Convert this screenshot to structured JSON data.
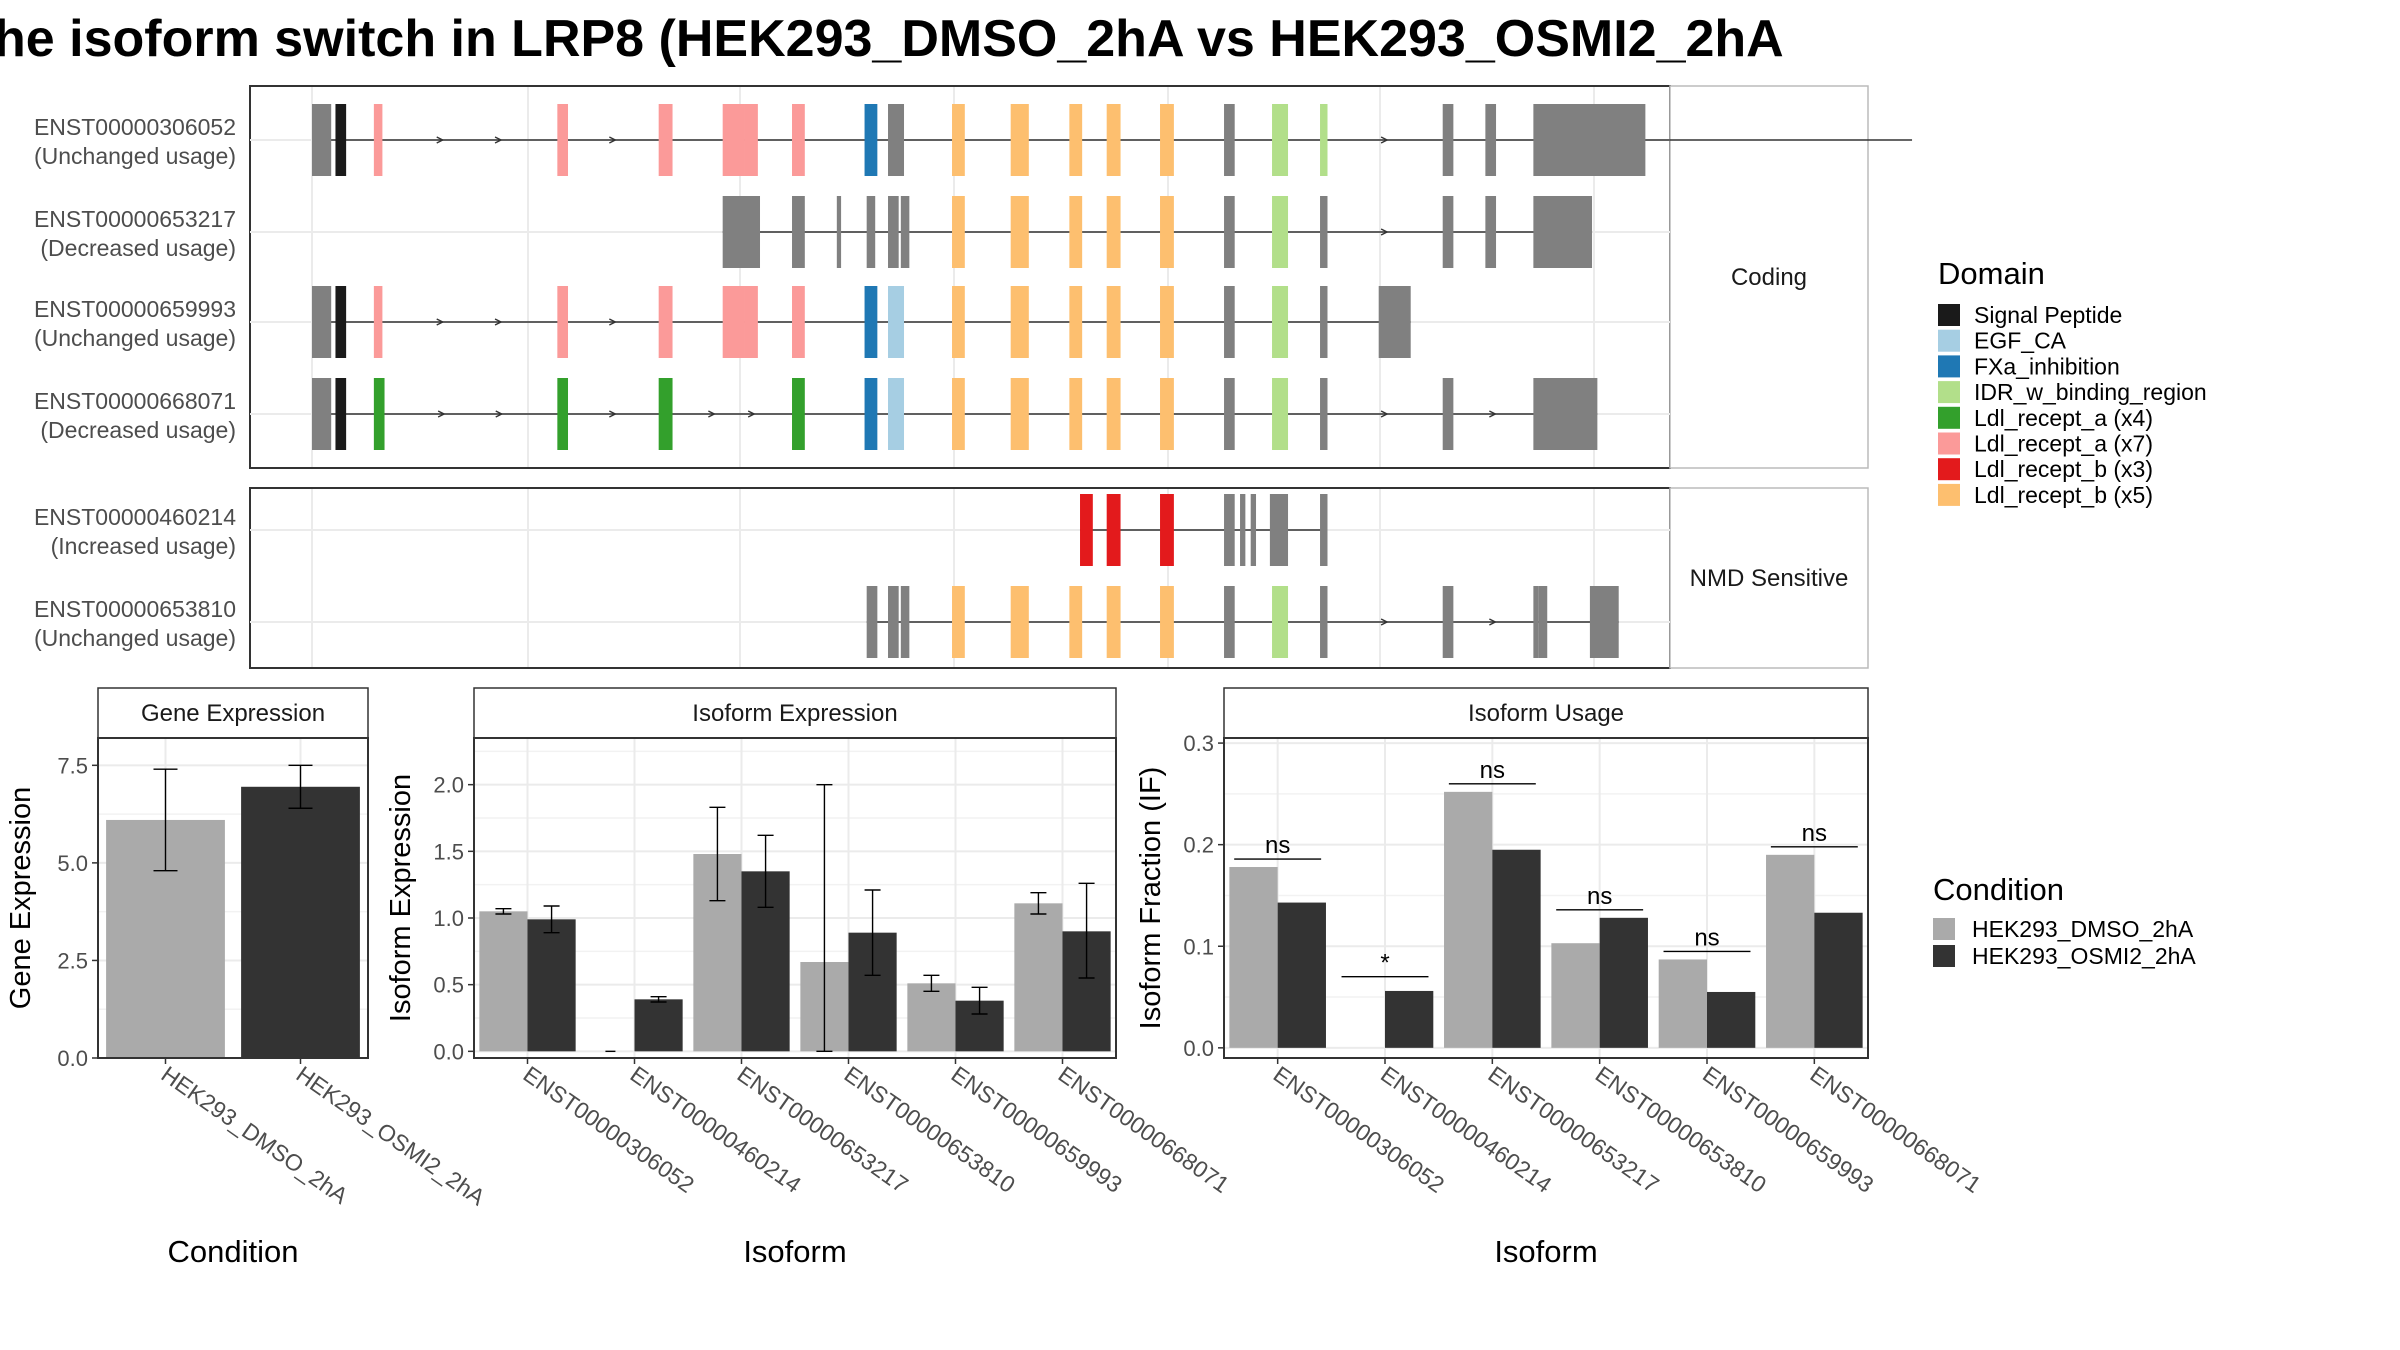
{
  "title": "he isoform switch in LRP8 (HEK293_DMSO_2hA vs HEK293_OSMI2_2hA",
  "colors": {
    "Signal Peptide": "#1a1a1a",
    "EGF_CA": "#a6cee3",
    "FXa_inhibition": "#1f78b4",
    "IDR_w_binding_region": "#b2df8a",
    "Ldl_recept_a (x4)": "#33a02c",
    "Ldl_recept_a (x7)": "#fb9a99",
    "Ldl_recept_b (x3)": "#e31a1c",
    "Ldl_recept_b (x5)": "#fdbf6f",
    "noncoding": "#808080",
    "DMSO": "#aaaaaa",
    "OSMI2": "#333333"
  },
  "legends": {
    "domain_title": "Domain",
    "domain_items": [
      "Signal Peptide",
      "EGF_CA",
      "FXa_inhibition",
      "IDR_w_binding_region",
      "Ldl_recept_a (x4)",
      "Ldl_recept_a (x7)",
      "Ldl_recept_b (x3)",
      "Ldl_recept_b (x5)"
    ],
    "condition_title": "Condition",
    "condition_items": [
      "HEK293_DMSO_2hA",
      "HEK293_OSMI2_2hA"
    ]
  },
  "structure": {
    "facet_coding": "Coding",
    "facet_nmd": "NMD Sensitive",
    "transcripts": [
      {
        "id": "ENST00000306052",
        "status": "(Unchanged usage)",
        "group": "coding",
        "start": 0,
        "end": 1500,
        "exons": [
          [
            0,
            18,
            "n"
          ],
          [
            22,
            32,
            "Signal Peptide"
          ],
          [
            58,
            66,
            "Ldl_recept_a (x7)"
          ],
          [
            230,
            240,
            "Ldl_recept_a (x7)"
          ],
          [
            325,
            338,
            "Ldl_recept_a (x7)"
          ],
          [
            385,
            405,
            "Ldl_recept_a (x7)"
          ],
          [
            405,
            418,
            "Ldl_recept_a (x7)"
          ],
          [
            450,
            462,
            "Ldl_recept_a (x7)"
          ],
          [
            518,
            530,
            "FXa_inhibition"
          ],
          [
            540,
            555,
            "n"
          ],
          [
            600,
            612,
            "Ldl_recept_b (x5)"
          ],
          [
            655,
            672,
            "Ldl_recept_b (x5)"
          ],
          [
            710,
            722,
            "Ldl_recept_b (x5)"
          ],
          [
            745,
            758,
            "Ldl_recept_b (x5)"
          ],
          [
            795,
            808,
            "Ldl_recept_b (x5)"
          ],
          [
            855,
            865,
            "n"
          ],
          [
            900,
            915,
            "IDR_w_binding_region"
          ],
          [
            945,
            952,
            "IDR_w_binding_region"
          ],
          [
            1060,
            1070,
            "n"
          ],
          [
            1100,
            1110,
            "n"
          ],
          [
            1145,
            1250,
            "n"
          ]
        ]
      },
      {
        "id": "ENST00000653217",
        "status": "(Decreased usage)",
        "group": "coding",
        "start": 385,
        "end": 1200,
        "exons": [
          [
            385,
            420,
            "n"
          ],
          [
            450,
            462,
            "n"
          ],
          [
            492,
            496,
            "n"
          ],
          [
            520,
            528,
            "n"
          ],
          [
            540,
            550,
            "n"
          ],
          [
            552,
            560,
            "n"
          ],
          [
            600,
            612,
            "Ldl_recept_b (x5)"
          ],
          [
            655,
            672,
            "Ldl_recept_b (x5)"
          ],
          [
            710,
            722,
            "Ldl_recept_b (x5)"
          ],
          [
            745,
            758,
            "Ldl_recept_b (x5)"
          ],
          [
            795,
            808,
            "Ldl_recept_b (x5)"
          ],
          [
            855,
            865,
            "n"
          ],
          [
            900,
            915,
            "IDR_w_binding_region"
          ],
          [
            945,
            952,
            "n"
          ],
          [
            1060,
            1070,
            "n"
          ],
          [
            1100,
            1110,
            "n"
          ],
          [
            1145,
            1200,
            "n"
          ]
        ]
      },
      {
        "id": "ENST00000659993",
        "status": "(Unchanged usage)",
        "group": "coding",
        "start": 0,
        "end": 1030,
        "exons": [
          [
            0,
            18,
            "n"
          ],
          [
            22,
            32,
            "Signal Peptide"
          ],
          [
            58,
            66,
            "Ldl_recept_a (x7)"
          ],
          [
            230,
            240,
            "Ldl_recept_a (x7)"
          ],
          [
            325,
            338,
            "Ldl_recept_a (x7)"
          ],
          [
            385,
            405,
            "Ldl_recept_a (x7)"
          ],
          [
            405,
            418,
            "Ldl_recept_a (x7)"
          ],
          [
            450,
            462,
            "Ldl_recept_a (x7)"
          ],
          [
            518,
            530,
            "FXa_inhibition"
          ],
          [
            540,
            555,
            "EGF_CA"
          ],
          [
            600,
            612,
            "Ldl_recept_b (x5)"
          ],
          [
            655,
            672,
            "Ldl_recept_b (x5)"
          ],
          [
            710,
            722,
            "Ldl_recept_b (x5)"
          ],
          [
            745,
            758,
            "Ldl_recept_b (x5)"
          ],
          [
            795,
            808,
            "Ldl_recept_b (x5)"
          ],
          [
            855,
            865,
            "n"
          ],
          [
            900,
            915,
            "IDR_w_binding_region"
          ],
          [
            945,
            952,
            "n"
          ],
          [
            1000,
            1012,
            "n"
          ],
          [
            1012,
            1030,
            "n"
          ]
        ]
      },
      {
        "id": "ENST00000668071",
        "status": "(Decreased usage)",
        "group": "coding",
        "start": 0,
        "end": 1205,
        "exons": [
          [
            0,
            18,
            "n"
          ],
          [
            22,
            32,
            "Signal Peptide"
          ],
          [
            58,
            68,
            "Ldl_recept_a (x4)"
          ],
          [
            230,
            240,
            "Ldl_recept_a (x4)"
          ],
          [
            325,
            338,
            "Ldl_recept_a (x4)"
          ],
          [
            450,
            462,
            "Ldl_recept_a (x4)"
          ],
          [
            518,
            530,
            "FXa_inhibition"
          ],
          [
            540,
            555,
            "EGF_CA"
          ],
          [
            600,
            612,
            "Ldl_recept_b (x5)"
          ],
          [
            655,
            672,
            "Ldl_recept_b (x5)"
          ],
          [
            710,
            722,
            "Ldl_recept_b (x5)"
          ],
          [
            745,
            758,
            "Ldl_recept_b (x5)"
          ],
          [
            795,
            808,
            "Ldl_recept_b (x5)"
          ],
          [
            855,
            865,
            "n"
          ],
          [
            900,
            915,
            "IDR_w_binding_region"
          ],
          [
            945,
            952,
            "n"
          ],
          [
            1060,
            1070,
            "n"
          ],
          [
            1145,
            1205,
            "n"
          ]
        ]
      },
      {
        "id": "ENST00000460214",
        "status": "(Increased usage)",
        "group": "nmd",
        "start": 720,
        "end": 952,
        "exons": [
          [
            720,
            732,
            "Ldl_recept_b (x3)"
          ],
          [
            745,
            758,
            "Ldl_recept_b (x3)"
          ],
          [
            795,
            808,
            "Ldl_recept_b (x3)"
          ],
          [
            855,
            865,
            "n"
          ],
          [
            870,
            875,
            "n"
          ],
          [
            880,
            885,
            "n"
          ],
          [
            898,
            915,
            "n"
          ],
          [
            945,
            952,
            "n"
          ]
        ]
      },
      {
        "id": "ENST00000653810",
        "status": "(Unchanged usage)",
        "group": "nmd",
        "start": 520,
        "end": 1225,
        "exons": [
          [
            520,
            530,
            "n"
          ],
          [
            540,
            550,
            "n"
          ],
          [
            552,
            560,
            "n"
          ],
          [
            600,
            612,
            "Ldl_recept_b (x5)"
          ],
          [
            655,
            672,
            "Ldl_recept_b (x5)"
          ],
          [
            710,
            722,
            "Ldl_recept_b (x5)"
          ],
          [
            745,
            758,
            "Ldl_recept_b (x5)"
          ],
          [
            795,
            808,
            "Ldl_recept_b (x5)"
          ],
          [
            855,
            865,
            "n"
          ],
          [
            900,
            915,
            "IDR_w_binding_region"
          ],
          [
            945,
            952,
            "n"
          ],
          [
            1060,
            1070,
            "n"
          ],
          [
            1145,
            1150,
            "n"
          ],
          [
            1150,
            1158,
            "n"
          ],
          [
            1198,
            1225,
            "n"
          ]
        ]
      }
    ]
  },
  "chart_data": [
    {
      "type": "bar",
      "title": "Gene Expression",
      "xlabel": "Condition",
      "ylabel": "Gene Expression",
      "categories": [
        "HEK293_DMSO_2hA",
        "HEK293_OSMI2_2hA"
      ],
      "values": [
        6.1,
        6.95
      ],
      "err_low": [
        4.8,
        6.4
      ],
      "err_high": [
        7.4,
        7.5
      ],
      "ylim": [
        0,
        8.2
      ],
      "yticks": [
        "0.0",
        "2.5",
        "5.0",
        "7.5"
      ]
    },
    {
      "type": "bar",
      "title": "Isoform Expression",
      "xlabel": "Isoform",
      "ylabel": "Isoform Expression",
      "categories": [
        "ENST00000306052",
        "ENST00000460214",
        "ENST00000653217",
        "ENST00000653810",
        "ENST00000659993",
        "ENST00000668071"
      ],
      "series": [
        {
          "name": "HEK293_DMSO_2hA",
          "values": [
            1.05,
            0.0,
            1.48,
            0.67,
            0.51,
            1.11
          ],
          "err_low": [
            1.03,
            0.0,
            1.13,
            0.0,
            0.45,
            1.03
          ],
          "err_high": [
            1.07,
            0.0,
            1.83,
            2.0,
            0.57,
            1.19
          ]
        },
        {
          "name": "HEK293_OSMI2_2hA",
          "values": [
            0.99,
            0.39,
            1.35,
            0.89,
            0.38,
            0.9
          ],
          "err_low": [
            0.89,
            0.37,
            1.08,
            0.57,
            0.28,
            0.55
          ],
          "err_high": [
            1.09,
            0.41,
            1.62,
            1.21,
            0.48,
            1.26
          ]
        }
      ],
      "ylim": [
        -0.05,
        2.35
      ],
      "yticks": [
        "0.0",
        "0.5",
        "1.0",
        "1.5",
        "2.0"
      ]
    },
    {
      "type": "bar",
      "title": "Isoform Usage",
      "xlabel": "Isoform",
      "ylabel": "Isoform Fraction (IF)",
      "categories": [
        "ENST00000306052",
        "ENST00000460214",
        "ENST00000653217",
        "ENST00000653810",
        "ENST00000659993",
        "ENST00000668071"
      ],
      "series": [
        {
          "name": "HEK293_DMSO_2hA",
          "values": [
            0.178,
            0.0,
            0.252,
            0.103,
            0.087,
            0.19
          ]
        },
        {
          "name": "HEK293_OSMI2_2hA",
          "values": [
            0.143,
            0.056,
            0.195,
            0.128,
            0.055,
            0.133
          ]
        }
      ],
      "significance": [
        "ns",
        "*",
        "ns",
        "ns",
        "ns",
        "ns"
      ],
      "ylim": [
        -0.01,
        0.305
      ],
      "yticks": [
        "0.0",
        "0.1",
        "0.2",
        "0.3"
      ]
    }
  ]
}
